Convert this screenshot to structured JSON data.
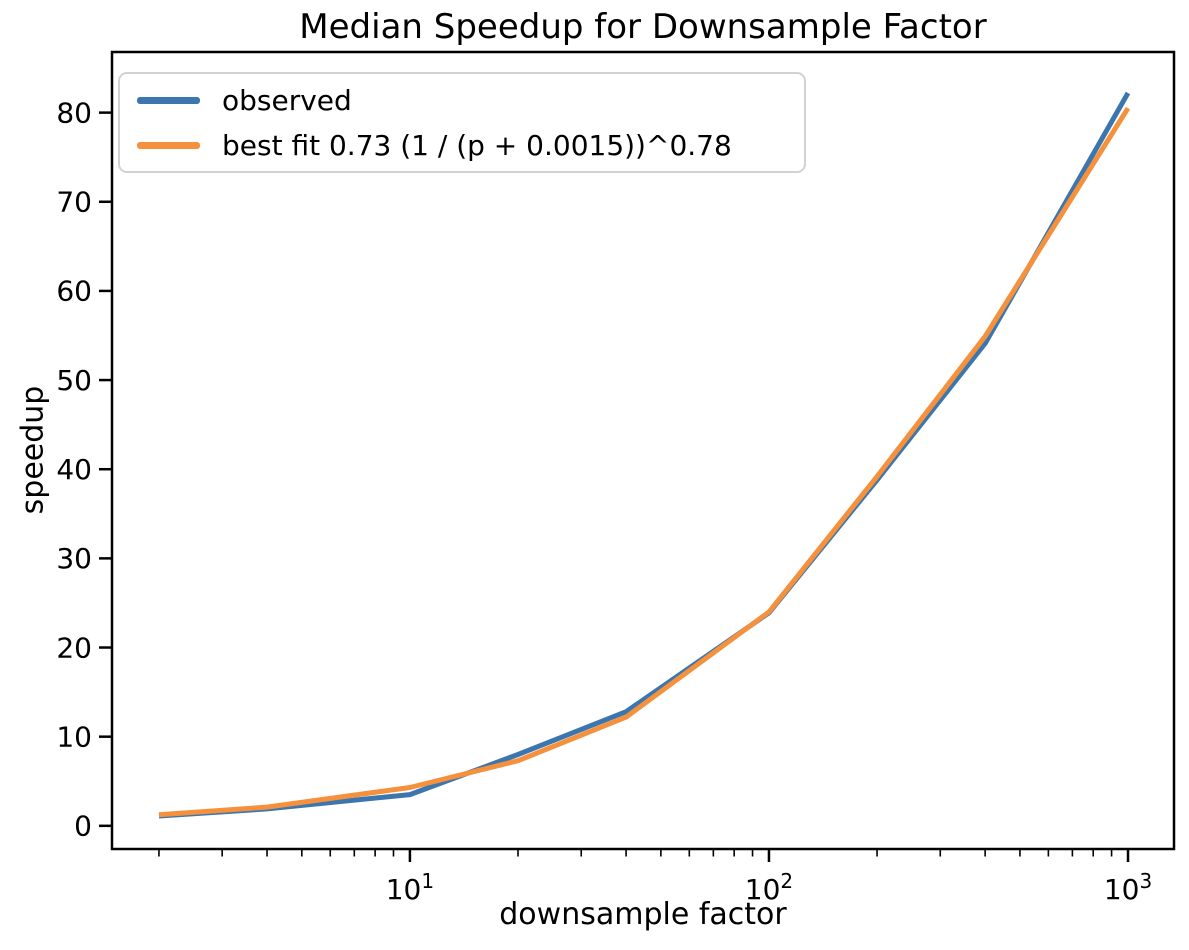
{
  "chart_data": {
    "type": "line",
    "title": "Median Speedup for Downsample Factor",
    "xlabel": "downsample factor",
    "ylabel": "speedup",
    "x_scale": "log",
    "grid": false,
    "legend_position": "upper left",
    "x": [
      2,
      4,
      10,
      20,
      40,
      100,
      200,
      400,
      1000
    ],
    "series": [
      {
        "name": "observed",
        "color": "#3c76af",
        "values": [
          1.1,
          1.9,
          3.5,
          8.0,
          12.8,
          23.9,
          38.8,
          54.1,
          82.2
        ]
      },
      {
        "name": "best fit 0.73 (1 / (p + 0.0015))^0.78",
        "color": "#f5913c",
        "values": [
          1.25,
          2.1,
          4.3,
          7.3,
          12.2,
          24.0,
          39.2,
          54.9,
          80.5
        ]
      }
    ],
    "xlim": [
      1.48,
      1343
    ],
    "ylim": [
      -2.6,
      86.8
    ],
    "x_ticks": [
      {
        "base": "10",
        "exp": "1",
        "value": 10
      },
      {
        "base": "10",
        "exp": "2",
        "value": 100
      },
      {
        "base": "10",
        "exp": "3",
        "value": 1000
      }
    ],
    "y_ticks": [
      0,
      10,
      20,
      30,
      40,
      50,
      60,
      70,
      80
    ]
  },
  "colors": {
    "axis": "#000000",
    "text": "#000000",
    "legend_border": "#d2d2d2",
    "background": "#ffffff"
  }
}
